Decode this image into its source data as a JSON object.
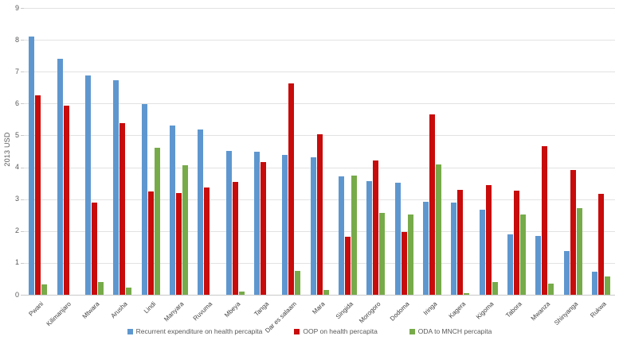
{
  "chart_data": {
    "type": "bar",
    "title": "",
    "ylabel": "2013 USD",
    "xlabel": "",
    "ylim": [
      0,
      9
    ],
    "ytick_step": 1,
    "grid": true,
    "legend_position": "bottom",
    "categories": [
      "Pwani",
      "Kilimanjaro",
      "Mtwara",
      "Arusha",
      "Lindi",
      "Manyara",
      "Ruvuma",
      "Mbeya",
      "Tanga",
      "Dar es salaam",
      "Mara",
      "Singida",
      "Morogoro",
      "Dodoma",
      "Iringa",
      "Kagera",
      "Kigoma",
      "Tabora",
      "Mwanza",
      "Shinyanga",
      "Rukwa"
    ],
    "series": [
      {
        "name": "Recurrent expenditure on health percapita",
        "color": "#5e97cf",
        "values": [
          8.1,
          7.4,
          6.87,
          6.73,
          5.98,
          5.31,
          5.18,
          4.52,
          4.5,
          4.38,
          4.32,
          3.71,
          3.57,
          3.51,
          2.91,
          2.89,
          2.67,
          1.9,
          1.84,
          1.38,
          0.73
        ]
      },
      {
        "name": "OOP on health percapita",
        "color": "#c80b0b",
        "values": [
          6.25,
          5.94,
          2.88,
          5.38,
          3.23,
          3.19,
          3.37,
          3.55,
          4.17,
          6.62,
          5.04,
          1.83,
          4.22,
          1.96,
          5.65,
          3.29,
          3.45,
          3.26,
          4.65,
          3.91,
          3.16
        ]
      },
      {
        "name": "ODA to MNCH percapita",
        "color": "#77ab4a",
        "values": [
          0.33,
          0,
          0.4,
          0.23,
          4.62,
          4.07,
          0,
          0.1,
          0,
          0.75,
          0.14,
          3.73,
          2.56,
          2.52,
          4.08,
          0.06,
          0.39,
          2.52,
          0.36,
          2.71,
          0.57
        ]
      }
    ],
    "colors": {
      "grid": "#e2e2e2",
      "axis": "#c9c9c9",
      "tick_text": "#595959",
      "category_text": "#3f3f3f"
    }
  }
}
